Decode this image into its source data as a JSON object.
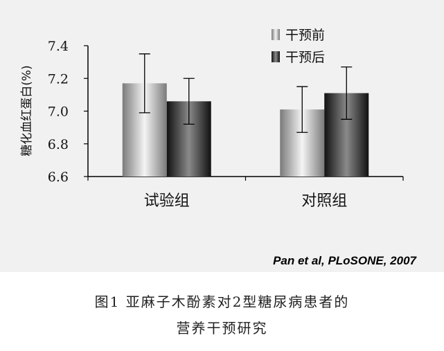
{
  "chart_data": {
    "type": "bar",
    "title": "",
    "ylabel": "糖化血红蛋白(%)",
    "xlabel": "",
    "categories": [
      "试验组",
      "对照组"
    ],
    "ylim": [
      6.6,
      7.4
    ],
    "yticks": [
      "6.6",
      "6.8",
      "7.0",
      "7.2",
      "7.4"
    ],
    "grid": false,
    "legend_position": "top-right",
    "series": [
      {
        "name": "干预前",
        "values": [
          7.17,
          7.01
        ],
        "error": [
          0.18,
          0.14
        ],
        "color": "#d8d8d8"
      },
      {
        "name": "干预后",
        "values": [
          7.06,
          7.11
        ],
        "error": [
          0.14,
          0.16
        ],
        "color": "#4a4a4a"
      }
    ]
  },
  "citation": "Pan et al, PLoSONE, 2007",
  "caption": {
    "line1": "图1  亚麻子木酚素对2型糖尿病患者的",
    "line2": "营养干预研究"
  }
}
